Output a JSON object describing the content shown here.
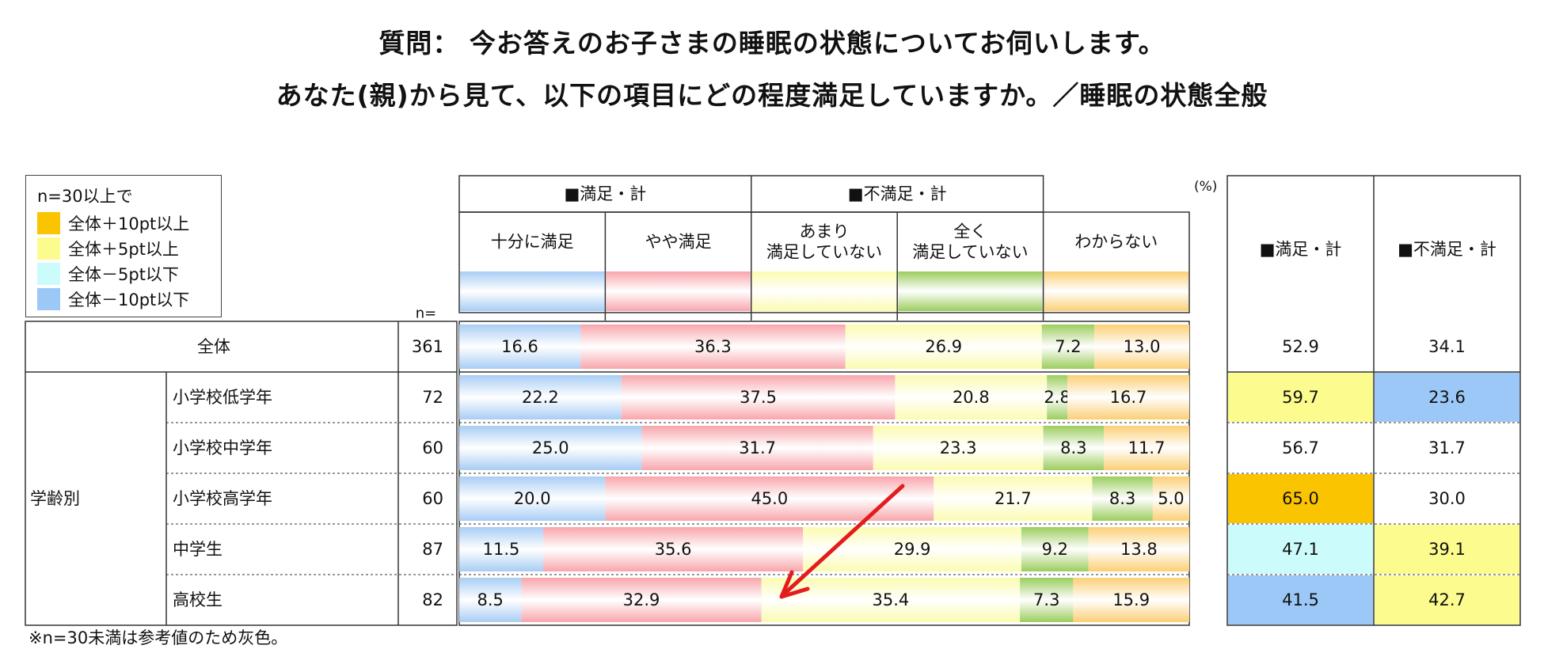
{
  "title": {
    "line1": "質問： 今お答えのお子さまの睡眠の状態についてお伺いします。",
    "line2": "あなた(親)から見て、以下の項目にどの程度満足していますか。／睡眠の状態全般"
  },
  "legend": {
    "heading": "n=30以上で",
    "items": [
      {
        "label": "全体＋10pt以上",
        "color": "#fbc400"
      },
      {
        "label": "全体＋5pt以上",
        "color": "#fbfb8e"
      },
      {
        "label": "全体－5pt以下",
        "color": "#cbfbfb"
      },
      {
        "label": "全体－10pt以下",
        "color": "#9bc8f6"
      }
    ]
  },
  "header": {
    "n_label": "n=",
    "pct_unit": "(%)",
    "group_satisfied": "■満足・計",
    "group_unsatisfied": "■不満足・計",
    "summary_satisfied": "■満足・計",
    "summary_unsatisfied": "■不満足・計"
  },
  "footnote": "※n=30未満は参考値のため灰色。",
  "group_label": "学齢別",
  "chart_data": {
    "type": "bar",
    "orientation": "horizontal",
    "stacked": true,
    "unit": "%",
    "categories": [
      {
        "name": "十分に満足",
        "color": "#a8cdf5"
      },
      {
        "name": "やや満足",
        "color": "#f8a6ac"
      },
      {
        "name": "あまり\n満足していない",
        "color": "#fbfbb0"
      },
      {
        "name": "全く\n満足していない",
        "color": "#9ccd5e"
      },
      {
        "name": "わからない",
        "color": "#fbcf75"
      }
    ],
    "rows": [
      {
        "label": "全体",
        "n": 361,
        "values": [
          16.6,
          36.3,
          26.9,
          7.2,
          13.0
        ],
        "satisfied": 52.9,
        "unsatisfied": 34.1,
        "sat_hl": "",
        "unsat_hl": ""
      },
      {
        "label": "小学校低学年",
        "n": 72,
        "values": [
          22.2,
          37.5,
          20.8,
          2.8,
          16.7
        ],
        "satisfied": 59.7,
        "unsatisfied": 23.6,
        "sat_hl": "#fbfb8e",
        "unsat_hl": "#9bc8f6"
      },
      {
        "label": "小学校中学年",
        "n": 60,
        "values": [
          25.0,
          31.7,
          23.3,
          8.3,
          11.7
        ],
        "satisfied": 56.7,
        "unsatisfied": 31.7,
        "sat_hl": "",
        "unsat_hl": ""
      },
      {
        "label": "小学校高学年",
        "n": 60,
        "values": [
          20.0,
          45.0,
          21.7,
          8.3,
          5.0
        ],
        "satisfied": 65.0,
        "unsatisfied": 30.0,
        "sat_hl": "#fbc400",
        "unsat_hl": ""
      },
      {
        "label": "中学生",
        "n": 87,
        "values": [
          11.5,
          35.6,
          29.9,
          9.2,
          13.8
        ],
        "satisfied": 47.1,
        "unsatisfied": 39.1,
        "sat_hl": "#cbfbfb",
        "unsat_hl": "#fbfb8e"
      },
      {
        "label": "高校生",
        "n": 82,
        "values": [
          8.5,
          32.9,
          35.4,
          7.3,
          15.9
        ],
        "satisfied": 41.5,
        "unsatisfied": 42.7,
        "sat_hl": "#9bc8f6",
        "unsat_hl": "#fbfb8e"
      }
    ]
  }
}
